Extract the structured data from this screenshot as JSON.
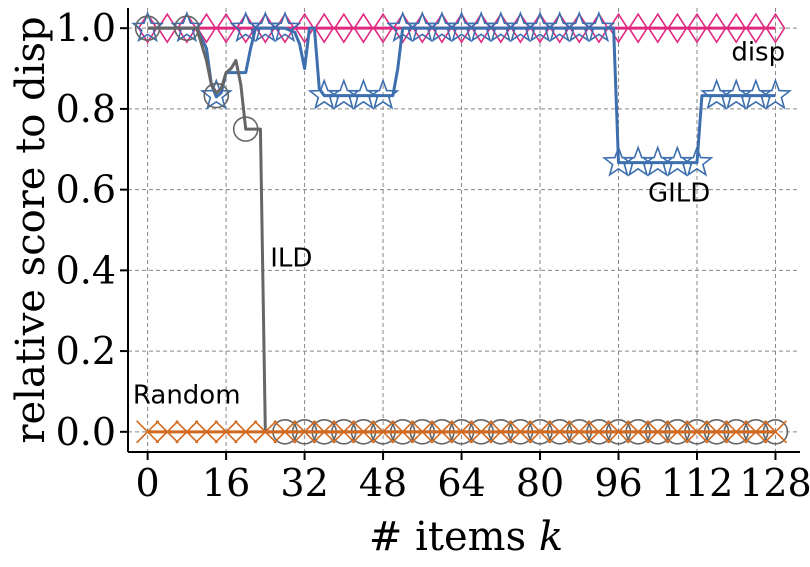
{
  "chart_data": {
    "type": "line",
    "xlabel": "# items k",
    "xlabel_main": "# items ",
    "xlabel_var": "k",
    "ylabel": "relative score to disp",
    "xlim": [
      -4,
      133
    ],
    "ylim": [
      -0.05,
      1.05
    ],
    "xticks": [
      0,
      16,
      32,
      48,
      64,
      80,
      96,
      112,
      128
    ],
    "yticks": [
      0.0,
      0.2,
      0.4,
      0.6,
      0.8,
      1.0
    ],
    "ytick_labels": [
      "0.0",
      "0.2",
      "0.4",
      "0.6",
      "0.8",
      "1.0"
    ],
    "grid": true,
    "series": [
      {
        "name": "disp",
        "color": "#e0287f",
        "marker": "diamond",
        "label_at": [
          119,
          0.92
        ],
        "x": [
          0,
          4,
          8,
          12,
          16,
          20,
          24,
          28,
          32,
          36,
          40,
          44,
          48,
          52,
          56,
          60,
          64,
          68,
          72,
          76,
          80,
          84,
          88,
          92,
          96,
          100,
          104,
          108,
          112,
          116,
          120,
          124,
          128
        ],
        "y": [
          1,
          1,
          1,
          1,
          1,
          1,
          1,
          1,
          1,
          1,
          1,
          1,
          1,
          1,
          1,
          1,
          1,
          1,
          1,
          1,
          1,
          1,
          1,
          1,
          1,
          1,
          1,
          1,
          1,
          1,
          1,
          1,
          1
        ],
        "markers_x": [
          0,
          4,
          8,
          12,
          16,
          20,
          24,
          28,
          32,
          36,
          40,
          44,
          48,
          52,
          56,
          60,
          64,
          68,
          72,
          76,
          80,
          84,
          88,
          92,
          96,
          100,
          104,
          108,
          112,
          116,
          120,
          124,
          128
        ],
        "markers_y": [
          1,
          1,
          1,
          1,
          1,
          1,
          1,
          1,
          1,
          1,
          1,
          1,
          1,
          1,
          1,
          1,
          1,
          1,
          1,
          1,
          1,
          1,
          1,
          1,
          1,
          1,
          1,
          1,
          1,
          1,
          1,
          1,
          1
        ]
      },
      {
        "name": "GILD",
        "color": "#3d6faf",
        "marker": "star",
        "label_at": [
          102,
          0.57
        ],
        "x": [
          0,
          8,
          10,
          12,
          13,
          14,
          15,
          16,
          18,
          19,
          20,
          21,
          22,
          24,
          26,
          28,
          30,
          31,
          32,
          33,
          34,
          35,
          36,
          40,
          44,
          48,
          50,
          51,
          52,
          56,
          60,
          64,
          68,
          72,
          76,
          80,
          84,
          88,
          92,
          95,
          96,
          100,
          104,
          108,
          112,
          113,
          116,
          120,
          124,
          128
        ],
        "y": [
          1,
          1,
          1,
          0.95,
          0.86,
          0.83,
          0.84,
          0.89,
          0.89,
          0.89,
          0.89,
          0.95,
          1,
          1,
          1,
          1,
          0.99,
          0.96,
          0.9,
          1,
          1,
          0.85,
          0.833,
          0.833,
          0.833,
          0.833,
          0.833,
          0.9,
          1,
          1,
          1,
          1,
          1,
          1,
          1,
          1,
          1,
          1,
          1,
          1,
          0.667,
          0.667,
          0.667,
          0.667,
          0.667,
          0.833,
          0.833,
          0.833,
          0.833,
          0.833
        ],
        "markers_x": [
          0,
          8,
          14,
          20,
          24,
          28,
          36,
          40,
          44,
          48,
          52,
          56,
          60,
          64,
          68,
          72,
          76,
          80,
          84,
          88,
          92,
          96,
          100,
          104,
          108,
          112,
          116,
          120,
          124,
          128
        ],
        "markers_y": [
          1,
          1,
          0.833,
          1,
          1,
          1,
          0.833,
          0.833,
          0.833,
          0.833,
          1,
          1,
          1,
          1,
          1,
          1,
          1,
          1,
          1,
          1,
          1,
          0.667,
          0.667,
          0.667,
          0.667,
          0.667,
          0.833,
          0.833,
          0.833,
          0.833
        ]
      },
      {
        "name": "ILD",
        "color": "#666666",
        "marker": "circle",
        "label_at": [
          25,
          0.41
        ],
        "x": [
          0,
          8,
          10,
          12,
          13,
          14,
          15,
          16,
          17,
          18,
          19,
          20,
          22,
          23,
          24,
          28,
          32,
          36,
          40,
          44,
          48,
          52,
          56,
          60,
          64,
          68,
          72,
          76,
          80,
          84,
          88,
          92,
          96,
          100,
          104,
          108,
          112,
          116,
          120,
          124,
          128
        ],
        "y": [
          1,
          1,
          1,
          0.92,
          0.86,
          0.84,
          0.85,
          0.89,
          0.9,
          0.92,
          0.86,
          0.75,
          0.75,
          0.75,
          0,
          0,
          0,
          0,
          0,
          0,
          0,
          0,
          0,
          0,
          0,
          0,
          0,
          0,
          0,
          0,
          0,
          0,
          0,
          0,
          0,
          0,
          0,
          0,
          0,
          0,
          0
        ],
        "markers_x": [
          0,
          8,
          14,
          20,
          28,
          32,
          36,
          40,
          44,
          48,
          52,
          56,
          60,
          64,
          68,
          72,
          76,
          80,
          84,
          88,
          92,
          96,
          100,
          104,
          108,
          112,
          116,
          120,
          124,
          128
        ],
        "markers_y": [
          1,
          1,
          0.833,
          0.75,
          0,
          0,
          0,
          0,
          0,
          0,
          0,
          0,
          0,
          0,
          0,
          0,
          0,
          0,
          0,
          0,
          0,
          0,
          0,
          0,
          0,
          0,
          0,
          0,
          0,
          0
        ]
      },
      {
        "name": "Random",
        "color": "#d2691e",
        "marker": "x",
        "label_at": [
          -3,
          0.07
        ],
        "x": [
          0,
          4,
          8,
          12,
          16,
          20,
          24,
          28,
          32,
          36,
          40,
          44,
          48,
          52,
          56,
          60,
          64,
          68,
          72,
          76,
          80,
          84,
          88,
          92,
          96,
          100,
          104,
          108,
          112,
          116,
          120,
          124,
          128
        ],
        "y": [
          0,
          0,
          0,
          0,
          0,
          0,
          0,
          0,
          0,
          0,
          0,
          0,
          0,
          0,
          0,
          0,
          0,
          0,
          0,
          0,
          0,
          0,
          0,
          0,
          0,
          0,
          0,
          0,
          0,
          0,
          0,
          0,
          0
        ],
        "markers_x": [
          0,
          4,
          8,
          12,
          16,
          20,
          24,
          28,
          32,
          36,
          40,
          44,
          48,
          52,
          56,
          60,
          64,
          68,
          72,
          76,
          80,
          84,
          88,
          92,
          96,
          100,
          104,
          108,
          112,
          116,
          120,
          124,
          128
        ],
        "markers_y": [
          0,
          0,
          0,
          0,
          0,
          0,
          0,
          0,
          0,
          0,
          0,
          0,
          0,
          0,
          0,
          0,
          0,
          0,
          0,
          0,
          0,
          0,
          0,
          0,
          0,
          0,
          0,
          0,
          0,
          0,
          0,
          0,
          0
        ]
      }
    ]
  }
}
